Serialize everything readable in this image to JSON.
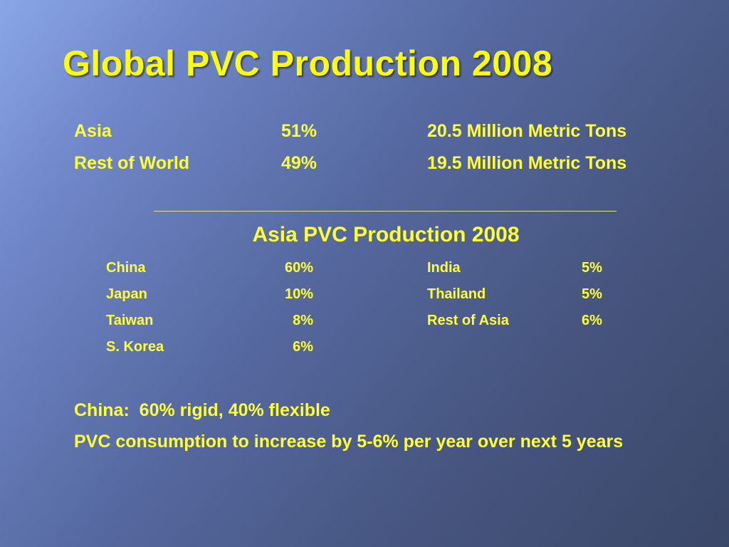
{
  "title": "Global PVC Production 2008",
  "global": {
    "rows": [
      {
        "region": "Asia",
        "share": "51%",
        "tons": "20.5 Million Metric Tons"
      },
      {
        "region": "Rest of World",
        "share": "49%",
        "tons": "19.5 Million Metric Tons"
      }
    ]
  },
  "asia": {
    "heading": "Asia PVC Production 2008",
    "left": [
      {
        "country": "China",
        "share": "60%"
      },
      {
        "country": "Japan",
        "share": "10%"
      },
      {
        "country": "Taiwan",
        "share": "8%"
      },
      {
        "country": "S. Korea",
        "share": "6%"
      }
    ],
    "right": [
      {
        "country": "India",
        "share": "5%"
      },
      {
        "country": "Thailand",
        "share": "5%"
      },
      {
        "country": "Rest of Asia",
        "share": "6%"
      }
    ]
  },
  "notes": [
    "China:  60% rigid, 40% flexible",
    "PVC consumption to increase by 5-6% per year over next 5 years"
  ],
  "colors": {
    "text": "#ffff33",
    "title": "#ffff00",
    "background_top_left": "#8aa6e6",
    "background_bottom_right": "#3a4768"
  }
}
